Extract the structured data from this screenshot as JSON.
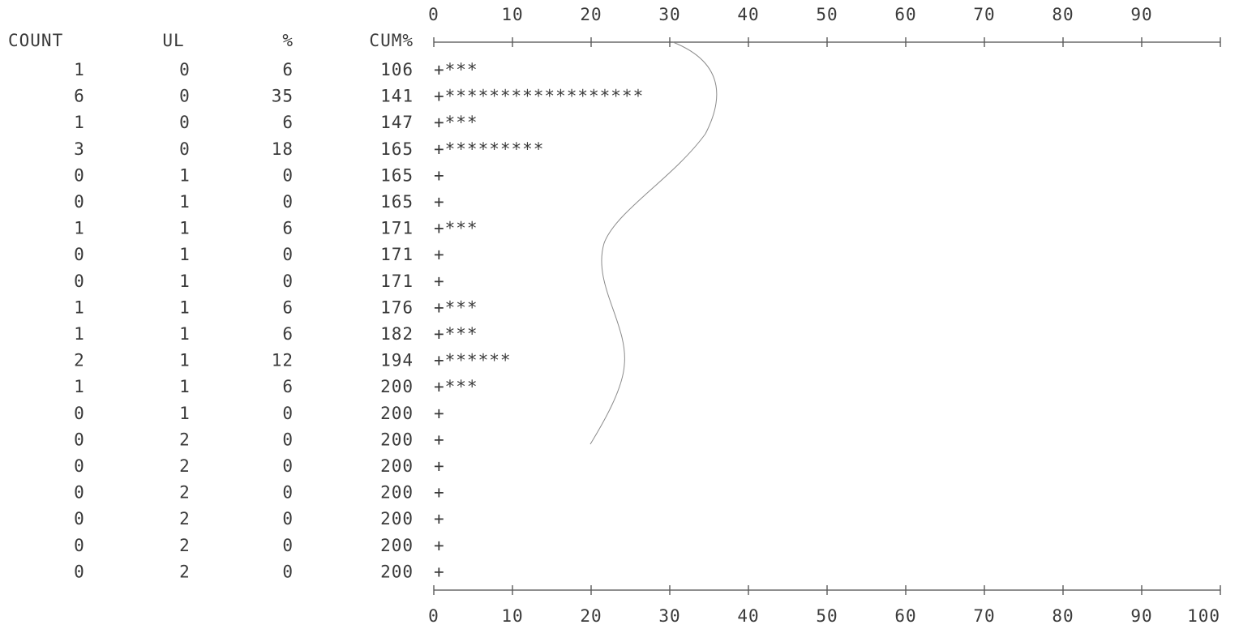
{
  "chart_data": {
    "type": "bar",
    "orientation": "horizontal",
    "bar_glyph": "*",
    "columns": [
      "COUNT",
      "UL",
      "%",
      "CUM%"
    ],
    "axis_ticks_top": [
      "0",
      "10",
      "20",
      "30",
      "40",
      "50",
      "60",
      "70",
      "80",
      "90"
    ],
    "axis_ticks_bottom": [
      "0",
      "10",
      "20",
      "30",
      "40",
      "50",
      "60",
      "70",
      "80",
      "90",
      "100"
    ],
    "xlim": [
      0,
      100
    ],
    "grid": false,
    "rows": [
      {
        "count": "1",
        "ul": "0",
        "pct": "6",
        "cum": "106",
        "value": 6
      },
      {
        "count": "6",
        "ul": "0",
        "pct": "35",
        "cum": "141",
        "value": 35
      },
      {
        "count": "1",
        "ul": "0",
        "pct": "6",
        "cum": "147",
        "value": 6
      },
      {
        "count": "3",
        "ul": "0",
        "pct": "18",
        "cum": "165",
        "value": 18
      },
      {
        "count": "0",
        "ul": "1",
        "pct": "0",
        "cum": "165",
        "value": 0
      },
      {
        "count": "0",
        "ul": "1",
        "pct": "0",
        "cum": "165",
        "value": 0
      },
      {
        "count": "1",
        "ul": "1",
        "pct": "6",
        "cum": "171",
        "value": 6
      },
      {
        "count": "0",
        "ul": "1",
        "pct": "0",
        "cum": "171",
        "value": 0
      },
      {
        "count": "0",
        "ul": "1",
        "pct": "0",
        "cum": "171",
        "value": 0
      },
      {
        "count": "1",
        "ul": "1",
        "pct": "6",
        "cum": "176",
        "value": 6
      },
      {
        "count": "1",
        "ul": "1",
        "pct": "6",
        "cum": "182",
        "value": 6
      },
      {
        "count": "2",
        "ul": "1",
        "pct": "12",
        "cum": "194",
        "value": 12
      },
      {
        "count": "1",
        "ul": "1",
        "pct": "6",
        "cum": "200",
        "value": 6
      },
      {
        "count": "0",
        "ul": "1",
        "pct": "0",
        "cum": "200",
        "value": 0
      },
      {
        "count": "0",
        "ul": "2",
        "pct": "0",
        "cum": "200",
        "value": 0
      },
      {
        "count": "0",
        "ul": "2",
        "pct": "0",
        "cum": "200",
        "value": 0
      },
      {
        "count": "0",
        "ul": "2",
        "pct": "0",
        "cum": "200",
        "value": 0
      },
      {
        "count": "0",
        "ul": "2",
        "pct": "0",
        "cum": "200",
        "value": 0
      },
      {
        "count": "0",
        "ul": "2",
        "pct": "0",
        "cum": "200",
        "value": 0
      },
      {
        "count": "0",
        "ul": "2",
        "pct": "0",
        "cum": "200",
        "value": 0
      }
    ]
  },
  "colors": {
    "ink": "#3a3a3a",
    "paper": "#ffffff",
    "pencil": "#8a8a8a"
  }
}
